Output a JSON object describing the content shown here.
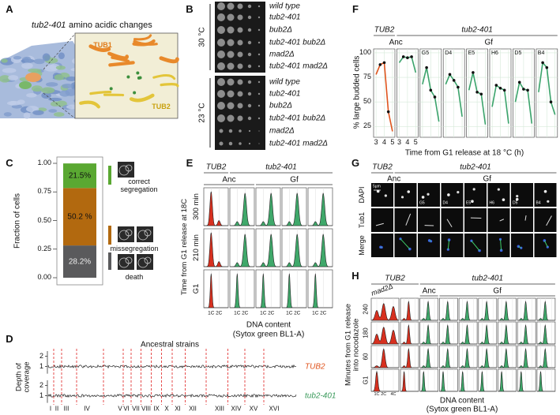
{
  "panels": {
    "A": {
      "letter": "A",
      "title_gene": "tub2-401",
      "title_text": "amino acidic changes",
      "labels": [
        "TUB1",
        "TUB2"
      ]
    },
    "B": {
      "letter": "B",
      "temperatures": [
        "30 °C",
        "23 °C"
      ],
      "strains": [
        "wild type",
        "tub2-401",
        "bub2Δ",
        "tub2-401 bub2Δ",
        "mad2Δ",
        "tub2-401 mad2Δ"
      ]
    },
    "D": {
      "letter": "D",
      "title": "Ancestral strains",
      "ylabel": "Depth of coverage",
      "ylim": [
        0.3,
        2.5
      ],
      "yticks": [
        1,
        2
      ],
      "chromosomes": [
        "I",
        "II",
        "III",
        "IV",
        "V",
        "VI",
        "VII",
        "VIII",
        "IX",
        "X",
        "XI",
        "XII",
        "XIII",
        "XIV",
        "XV",
        "XVI"
      ],
      "tracks": [
        "TUB2",
        "tub2-401"
      ]
    },
    "E": {
      "letter": "E",
      "header": [
        "TUB2",
        "tub2-401"
      ],
      "groups": [
        "Anc",
        "Gf"
      ],
      "ylabel": "Time from G1 release at 18C",
      "rows": [
        "300 min",
        "210 min",
        "G1"
      ],
      "xticks": [
        "1C",
        "2C"
      ],
      "xlabel": "DNA content",
      "xlabel_sub": "(Sytox green BL1-A)"
    },
    "G": {
      "letter": "G",
      "header": [
        "TUB2",
        "tub2-401"
      ],
      "groups": [
        "Anc",
        "Gf"
      ],
      "rows": [
        "DAPI",
        "Tub1",
        "Merge"
      ],
      "scale_bar": "5µm",
      "clones": [
        "G5",
        "D4",
        "E5",
        "H6",
        "D5",
        "B4"
      ]
    },
    "H": {
      "letter": "H",
      "header": [
        "TUB2",
        "tub2-401"
      ],
      "mutant": "mad2Δ",
      "groups": [
        "Anc",
        "Gf"
      ],
      "ylabel": "Minutes from G1 release into nocodazole",
      "rows": [
        "240",
        "180",
        "60",
        "G1"
      ],
      "xticks": [
        "1C",
        "2C",
        "4C"
      ],
      "xlabel": "DNA content",
      "xlabel_sub": "(Sytox green BL1-A)"
    }
  },
  "chart_data": [
    {
      "type": "stacked-bar",
      "letter": "C",
      "ylabel": "Fraction of cells",
      "ylim": [
        0,
        1
      ],
      "yticks": [
        {
          "value": 0,
          "label": "0.00"
        },
        {
          "value": 0.25,
          "label": "0.25"
        },
        {
          "value": 0.5,
          "label": "0.50"
        },
        {
          "value": 0.75,
          "label": "0.75"
        },
        {
          "value": 1,
          "label": "1.00"
        }
      ],
      "series": [
        {
          "name": "death",
          "color": "#5a5a5c",
          "values": [
            0.282
          ],
          "value_labels": [
            "28.2%"
          ]
        },
        {
          "name": "missegregation",
          "color": "#b2690f",
          "values": [
            0.502
          ],
          "value_labels": [
            "50.2 %"
          ]
        },
        {
          "name": "correct segregation",
          "color": "#5aa832",
          "values": [
            0.215
          ],
          "value_labels": [
            "21.5%"
          ]
        }
      ]
    },
    {
      "type": "line",
      "letter": "F",
      "header": [
        "TUB2",
        "tub2-401"
      ],
      "groups": [
        "Anc",
        "Gf"
      ],
      "ylabel": "% large budded cells",
      "xlabel": "Time from G1 release at 18 °C (h)",
      "x": [
        3,
        3.5,
        4,
        4.5,
        5
      ],
      "xlim": [
        2.7,
        5.3
      ],
      "xticks": [
        3,
        4,
        5
      ],
      "ylim": [
        14,
        104
      ],
      "yticks": [
        25,
        50,
        75,
        100
      ],
      "grid": true,
      "series": [
        {
          "color": "#e0541e",
          "values": [
            78,
            88,
            90,
            40,
            20
          ]
        },
        {
          "color": "#3aa36b",
          "values": [
            90,
            96,
            95,
            96,
            80
          ]
        },
        {
          "name": "G5",
          "color": "#3aa36b",
          "values": [
            68,
            85,
            62,
            55,
            30
          ]
        },
        {
          "name": "D4",
          "color": "#3aa36b",
          "values": [
            68,
            78,
            72,
            65,
            35
          ]
        },
        {
          "name": "E5",
          "color": "#3aa36b",
          "values": [
            62,
            80,
            60,
            58,
            27
          ]
        },
        {
          "name": "H6",
          "color": "#3aa36b",
          "values": [
            45,
            67,
            64,
            62,
            28
          ]
        },
        {
          "name": "D5",
          "color": "#3aa36b",
          "values": [
            50,
            70,
            63,
            62,
            28
          ]
        },
        {
          "name": "B4",
          "color": "#3aa36b",
          "values": [
            60,
            90,
            85,
            50,
            37
          ]
        }
      ]
    }
  ]
}
